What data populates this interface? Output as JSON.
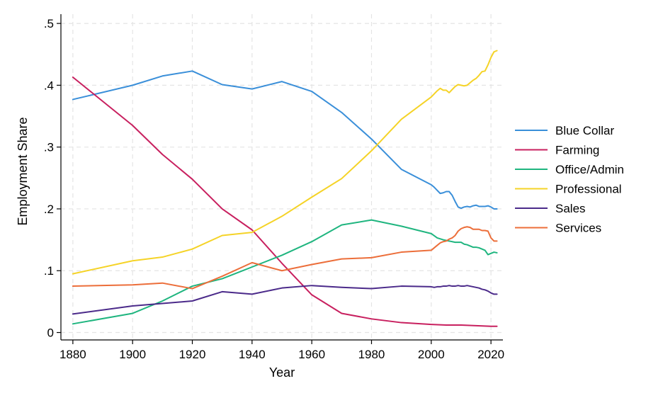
{
  "chart_data": {
    "type": "line",
    "title": "",
    "xlabel": "Year",
    "ylabel": "Employment Share",
    "xlim": [
      1876,
      2024
    ],
    "ylim": [
      -0.012,
      0.515
    ],
    "xticks": [
      1880,
      1900,
      1920,
      1940,
      1960,
      1980,
      2000,
      2020
    ],
    "xtick_labels": [
      "1880",
      "1900",
      "1920",
      "1940",
      "1960",
      "1980",
      "2000",
      "2020"
    ],
    "yticks": [
      0,
      0.1,
      0.2,
      0.3,
      0.4,
      0.5
    ],
    "ytick_labels": [
      "0",
      ".1",
      ".2",
      ".3",
      ".4",
      ".5"
    ],
    "grid": true,
    "legend_position": "right",
    "series": [
      {
        "name": "Blue Collar",
        "color": "#3a8fd9",
        "x": [
          1880,
          1900,
          1910,
          1920,
          1930,
          1940,
          1950,
          1960,
          1970,
          1980,
          1990,
          2000,
          2001,
          2002,
          2003,
          2004,
          2005,
          2006,
          2007,
          2008,
          2009,
          2010,
          2011,
          2012,
          2013,
          2014,
          2015,
          2016,
          2017,
          2018,
          2019,
          2020,
          2021,
          2022
        ],
        "y": [
          0.377,
          0.4,
          0.415,
          0.423,
          0.401,
          0.394,
          0.406,
          0.39,
          0.356,
          0.313,
          0.264,
          0.239,
          0.235,
          0.23,
          0.225,
          0.226,
          0.228,
          0.228,
          0.222,
          0.212,
          0.203,
          0.201,
          0.203,
          0.204,
          0.203,
          0.205,
          0.206,
          0.204,
          0.204,
          0.204,
          0.205,
          0.203,
          0.2,
          0.2
        ]
      },
      {
        "name": "Farming",
        "color": "#c8205f",
        "x": [
          1880,
          1900,
          1910,
          1920,
          1930,
          1940,
          1950,
          1960,
          1970,
          1980,
          1990,
          2000,
          2005,
          2010,
          2015,
          2020,
          2022
        ],
        "y": [
          0.413,
          0.335,
          0.288,
          0.248,
          0.2,
          0.166,
          0.112,
          0.061,
          0.031,
          0.022,
          0.016,
          0.013,
          0.012,
          0.012,
          0.011,
          0.01,
          0.01
        ]
      },
      {
        "name": "Office/Admin",
        "color": "#1fb57f",
        "x": [
          1880,
          1900,
          1910,
          1920,
          1930,
          1940,
          1950,
          1960,
          1970,
          1980,
          1990,
          2000,
          2002,
          2004,
          2006,
          2008,
          2010,
          2011,
          2012,
          2013,
          2014,
          2015,
          2016,
          2017,
          2018,
          2019,
          2020,
          2021,
          2022
        ],
        "y": [
          0.014,
          0.031,
          0.051,
          0.075,
          0.087,
          0.106,
          0.125,
          0.147,
          0.174,
          0.182,
          0.172,
          0.16,
          0.153,
          0.15,
          0.148,
          0.146,
          0.146,
          0.143,
          0.142,
          0.14,
          0.138,
          0.138,
          0.137,
          0.135,
          0.133,
          0.126,
          0.128,
          0.13,
          0.129
        ]
      },
      {
        "name": "Professional",
        "color": "#f5d327",
        "x": [
          1880,
          1900,
          1910,
          1920,
          1930,
          1940,
          1950,
          1960,
          1970,
          1980,
          1990,
          2000,
          2001,
          2002,
          2003,
          2004,
          2005,
          2006,
          2007,
          2008,
          2009,
          2010,
          2011,
          2012,
          2013,
          2014,
          2015,
          2016,
          2017,
          2018,
          2019,
          2020,
          2021,
          2022
        ],
        "y": [
          0.095,
          0.116,
          0.122,
          0.135,
          0.157,
          0.162,
          0.188,
          0.219,
          0.249,
          0.294,
          0.345,
          0.381,
          0.386,
          0.391,
          0.395,
          0.392,
          0.392,
          0.388,
          0.393,
          0.398,
          0.401,
          0.4,
          0.399,
          0.4,
          0.404,
          0.408,
          0.411,
          0.416,
          0.422,
          0.423,
          0.433,
          0.445,
          0.454,
          0.456
        ]
      },
      {
        "name": "Sales",
        "color": "#4b2a8a",
        "x": [
          1880,
          1900,
          1910,
          1920,
          1930,
          1940,
          1950,
          1960,
          1970,
          1980,
          1990,
          2000,
          2001,
          2002,
          2003,
          2004,
          2005,
          2006,
          2007,
          2008,
          2009,
          2010,
          2011,
          2012,
          2013,
          2014,
          2015,
          2016,
          2017,
          2018,
          2019,
          2020,
          2021,
          2022
        ],
        "y": [
          0.03,
          0.043,
          0.047,
          0.051,
          0.066,
          0.062,
          0.072,
          0.076,
          0.073,
          0.071,
          0.075,
          0.074,
          0.073,
          0.074,
          0.074,
          0.075,
          0.075,
          0.076,
          0.075,
          0.075,
          0.076,
          0.075,
          0.075,
          0.076,
          0.075,
          0.074,
          0.073,
          0.072,
          0.07,
          0.069,
          0.067,
          0.064,
          0.062,
          0.062
        ]
      },
      {
        "name": "Services",
        "color": "#ec6e3a",
        "x": [
          1880,
          1900,
          1910,
          1920,
          1930,
          1940,
          1950,
          1960,
          1970,
          1980,
          1990,
          2000,
          2001,
          2002,
          2003,
          2004,
          2005,
          2006,
          2007,
          2008,
          2009,
          2010,
          2011,
          2012,
          2013,
          2014,
          2015,
          2016,
          2017,
          2018,
          2019,
          2020,
          2021,
          2022
        ],
        "y": [
          0.075,
          0.077,
          0.08,
          0.071,
          0.091,
          0.113,
          0.1,
          0.11,
          0.119,
          0.121,
          0.13,
          0.133,
          0.137,
          0.141,
          0.145,
          0.147,
          0.148,
          0.151,
          0.153,
          0.157,
          0.164,
          0.168,
          0.17,
          0.171,
          0.17,
          0.167,
          0.167,
          0.167,
          0.165,
          0.165,
          0.164,
          0.153,
          0.148,
          0.148
        ]
      }
    ]
  }
}
